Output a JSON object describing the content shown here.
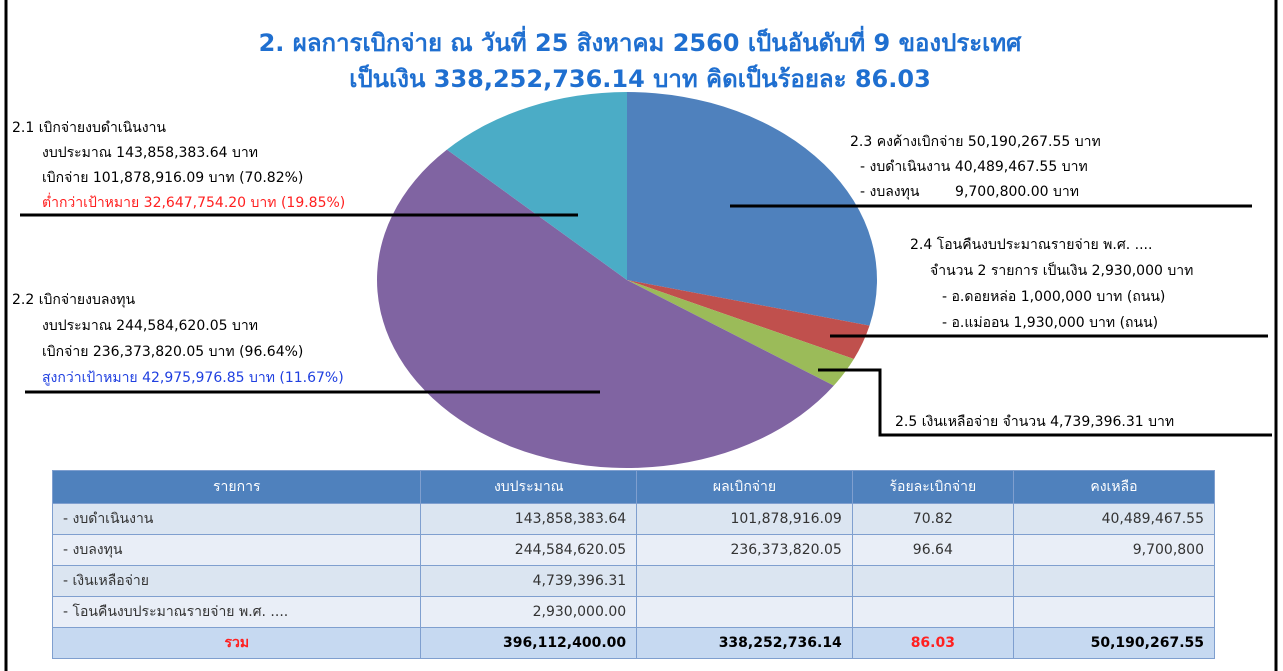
{
  "chart_data": {
    "type": "pie",
    "title": "2. ผลการเบิกจ่าย ณ วันที่ 25 สิงหาคม 2560 เป็นอันดับที่ 9 ของประเทศ",
    "subtitle": "เป็นเงิน 338,252,736.14 บาท คิดเป็นร้อยละ 86.03",
    "values": [
      28.9,
      3.0,
      2.6,
      52.7,
      12.8
    ],
    "colors": [
      "#4f81bd",
      "#c0504d",
      "#9bbb59",
      "#8064a2",
      "#4bacc6"
    ],
    "annotations": [
      [
        "2.1 เบิกจ่ายงบดำเนินงาน",
        "งบประมาณ 143,858,383.64 บาท",
        "เบิกจ่าย 101,878,916.09 บาท (70.82%)",
        "ต่ำกว่าเป้าหมาย 32,647,754.20 บาท (19.85%)"
      ],
      [
        "2.2 เบิกจ่ายงบลงทุน",
        "งบประมาณ 244,584,620.05 บาท",
        "เบิกจ่าย 236,373,820.05 บาท (96.64%)",
        "สูงกว่าเป้าหมาย 42,975,976.85 บาท (11.67%)"
      ],
      [
        "2.3 คงค้างเบิกจ่าย 50,190,267.55 บาท",
        "- งบดำเนินงาน 40,489,467.55 บาท",
        "- งบลงทุน        9,700,800.00 บาท"
      ],
      [
        "2.4 โอนคืนงบประมาณรายจ่าย พ.ศ. ....",
        "จำนวน 2 รายการ เป็นเงิน 2,930,000 บาท",
        "- อ.ดอยหล่อ 1,000,000 บาท (ถนน)",
        "- อ.แม่ออน 1,930,000 บาท (ถนน)"
      ],
      [
        "2.5 เงินเหลือจ่าย จำนวน 4,739,396.31 บาท"
      ]
    ]
  },
  "table": {
    "header": [
      "รายการ",
      "งบประมาณ",
      "ผลเบิกจ่าย",
      "ร้อยละเบิกจ่าย",
      "คงเหลือ"
    ],
    "rows": [
      [
        "- งบดำเนินงาน",
        "143,858,383.64",
        "101,878,916.09",
        "70.82",
        "40,489,467.55"
      ],
      [
        "- งบลงทุน",
        "244,584,620.05",
        "236,373,820.05",
        "96.64",
        "9,700,800"
      ],
      [
        "- เงินเหลือจ่าย",
        "4,739,396.31",
        "",
        "",
        ""
      ],
      [
        "- โอนคืนงบประมาณรายจ่าย พ.ศ. ....",
        "2,930,000.00",
        "",
        "",
        ""
      ],
      [
        "รวม",
        "396,112,400.00",
        "338,252,736.14",
        "86.03",
        "50,190,267.55"
      ]
    ]
  }
}
